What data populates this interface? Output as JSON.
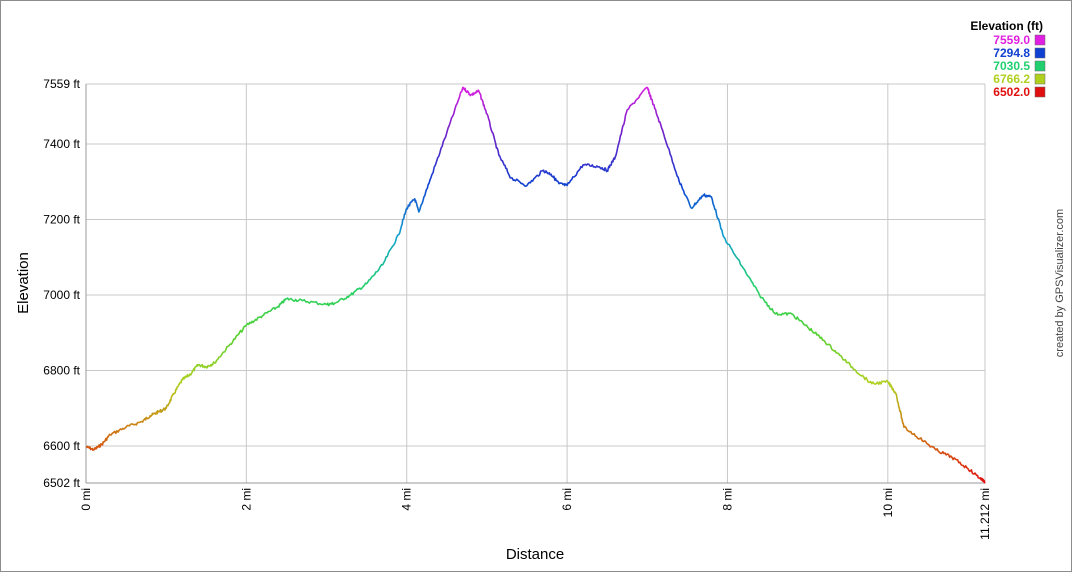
{
  "chart_data": {
    "type": "line",
    "xlabel": "Distance",
    "ylabel": "Elevation",
    "xlim": [
      0,
      11.212
    ],
    "ylim": [
      6502,
      7559
    ],
    "x_ticks": [
      {
        "value": 0,
        "label": "0 mi"
      },
      {
        "value": 2,
        "label": "2 mi"
      },
      {
        "value": 4,
        "label": "4 mi"
      },
      {
        "value": 6,
        "label": "6 mi"
      },
      {
        "value": 8,
        "label": "8 mi"
      },
      {
        "value": 10,
        "label": "10 mi"
      },
      {
        "value": 11.212,
        "label": "11.212 mi"
      }
    ],
    "y_ticks": [
      {
        "value": 7559,
        "label": "7559 ft"
      },
      {
        "value": 7400,
        "label": "7400 ft"
      },
      {
        "value": 7200,
        "label": "7200 ft"
      },
      {
        "value": 7000,
        "label": "7000 ft"
      },
      {
        "value": 6800,
        "label": "6800 ft"
      },
      {
        "value": 6600,
        "label": "6600 ft"
      },
      {
        "value": 6502,
        "label": "6502 ft"
      }
    ],
    "grid": true,
    "legend": {
      "title": "Elevation (ft)",
      "placement": "top-right",
      "entries": [
        {
          "label": "7559.0",
          "color": "#e020e0"
        },
        {
          "label": "7294.8",
          "color": "#1040d0"
        },
        {
          "label": "7030.5",
          "color": "#20d070"
        },
        {
          "label": "6766.2",
          "color": "#b0d020"
        },
        {
          "label": "6502.0",
          "color": "#e01010"
        }
      ]
    },
    "series": [
      {
        "x": [
          0,
          0.1,
          0.2,
          0.3,
          0.5,
          0.7,
          0.8,
          0.9,
          1.0,
          1.1,
          1.2,
          1.3,
          1.4,
          1.5,
          1.6,
          1.8,
          2.0,
          2.2,
          2.4,
          2.5,
          2.7,
          3.0,
          3.1,
          3.3,
          3.5,
          3.7,
          3.9,
          4.0,
          4.1,
          4.15,
          4.3,
          4.5,
          4.7,
          4.8,
          4.9,
          5.0,
          5.15,
          5.3,
          5.5,
          5.7,
          5.8,
          5.9,
          6.0,
          6.2,
          6.4,
          6.5,
          6.6,
          6.75,
          7.0,
          7.05,
          7.2,
          7.4,
          7.55,
          7.7,
          7.8,
          7.95,
          8.2,
          8.4,
          8.6,
          8.8,
          9.0,
          9.2,
          9.4,
          9.6,
          9.8,
          10.0,
          10.1,
          10.2,
          10.4,
          10.6,
          10.8,
          11.0,
          11.15,
          11.212
        ],
        "y": [
          6598,
          6590,
          6605,
          6630,
          6650,
          6665,
          6680,
          6690,
          6700,
          6740,
          6775,
          6790,
          6815,
          6810,
          6820,
          6870,
          6920,
          6945,
          6970,
          6990,
          6985,
          6975,
          6978,
          7000,
          7030,
          7080,
          7160,
          7230,
          7255,
          7220,
          7310,
          7430,
          7550,
          7530,
          7540,
          7480,
          7370,
          7310,
          7290,
          7330,
          7320,
          7295,
          7290,
          7345,
          7340,
          7330,
          7365,
          7490,
          7550,
          7520,
          7430,
          7300,
          7230,
          7265,
          7260,
          7155,
          7070,
          7000,
          6950,
          6950,
          6915,
          6880,
          6840,
          6800,
          6765,
          6770,
          6740,
          6650,
          6620,
          6590,
          6570,
          6540,
          6515,
          6505
        ]
      }
    ]
  },
  "credit": "created by GPSVisualizer.com"
}
